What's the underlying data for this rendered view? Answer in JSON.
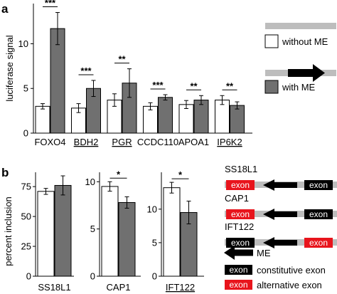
{
  "panel_a": {
    "label": "a",
    "chart_data": {
      "type": "bar",
      "title": "",
      "ylabel": "luciferase signal",
      "ylim": [
        0,
        14.5
      ],
      "yticks": [
        0,
        5,
        10
      ],
      "grid": false,
      "categories": [
        "FOXO4",
        "BDH2",
        "PGR",
        "CCDC110",
        "APOA1",
        "IP6K2"
      ],
      "underlined_categories": [
        "BDH2",
        "PGR",
        "IP6K2"
      ],
      "series": [
        {
          "name": "without ME",
          "color": "#ffffff",
          "values": [
            3.0,
            2.8,
            3.7,
            3.0,
            3.2,
            3.7
          ],
          "errors": [
            0.3,
            0.5,
            0.7,
            0.4,
            0.45,
            0.5
          ]
        },
        {
          "name": "with ME",
          "color": "#707070",
          "values": [
            11.7,
            5.0,
            5.6,
            4.0,
            3.7,
            3.1
          ],
          "errors": [
            1.8,
            0.9,
            1.6,
            0.3,
            0.5,
            0.4
          ]
        }
      ],
      "significance": [
        "***",
        "***",
        "**",
        "***",
        "**",
        "**"
      ]
    },
    "legend": {
      "without": "without ME",
      "with": "with ME"
    }
  },
  "panel_b": {
    "label": "b",
    "ylabel": "percent inclusion",
    "charts": [
      {
        "type": "bar",
        "categories": [
          "SS18L1"
        ],
        "ylim": [
          0,
          87
        ],
        "yticks": [
          0,
          25,
          50,
          75
        ],
        "series": [
          {
            "name": "without ME",
            "values": [
              71
            ],
            "errors": [
              2.5
            ]
          },
          {
            "name": "with ME",
            "values": [
              76
            ],
            "errors": [
              8
            ]
          }
        ],
        "significance": ""
      },
      {
        "type": "bar",
        "categories": [
          "CAP1"
        ],
        "ylim": [
          0,
          11
        ],
        "yticks": [
          0,
          5,
          10
        ],
        "series": [
          {
            "name": "without ME",
            "values": [
              9.5
            ],
            "errors": [
              0.5
            ]
          },
          {
            "name": "with ME",
            "values": [
              7.8
            ],
            "errors": [
              0.6
            ]
          }
        ],
        "significance": "*"
      },
      {
        "type": "bar",
        "categories": [
          "IFT122"
        ],
        "ylim": [
          0,
          15.5
        ],
        "yticks": [
          0,
          5,
          10
        ],
        "series": [
          {
            "name": "without ME",
            "values": [
              13.2
            ],
            "errors": [
              0.8
            ]
          },
          {
            "name": "with ME",
            "values": [
              9.5
            ],
            "errors": [
              1.7
            ]
          }
        ],
        "significance": "*"
      }
    ],
    "schematics": [
      {
        "gene": "SS18L1",
        "left_exon": "exon",
        "left_type": "alternative",
        "right_exon": "exon",
        "right_type": "constitutive"
      },
      {
        "gene": "CAP1",
        "left_exon": "exon",
        "left_type": "alternative",
        "right_exon": "exon",
        "right_type": "constitutive"
      },
      {
        "gene": "IFT122",
        "left_exon": "exon",
        "left_type": "constitutive",
        "right_exon": "exon",
        "right_type": "alternative"
      }
    ],
    "key": {
      "me_label": "ME",
      "constitutive_exon": "exon",
      "constitutive_label": "constitutive exon",
      "alternative_exon": "exon",
      "alternative_label": "alternative exon"
    },
    "colors": {
      "alternative": "#e8141c",
      "constitutive": "#000000",
      "backbone": "#bdbdbd"
    }
  }
}
